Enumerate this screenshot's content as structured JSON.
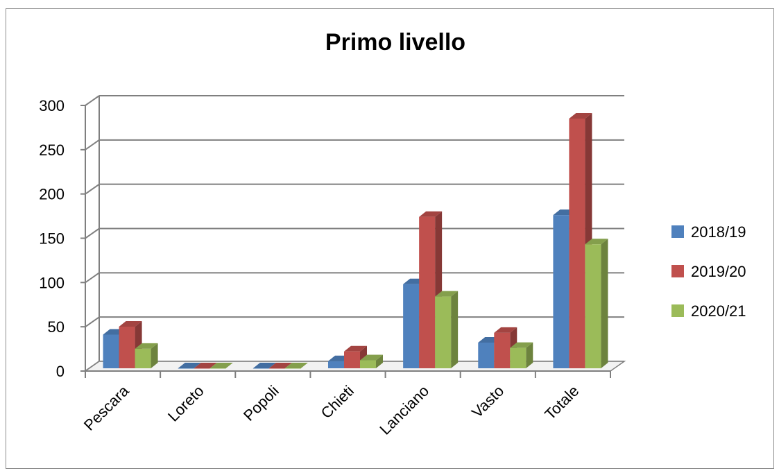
{
  "chart_data": {
    "type": "bar",
    "style": "3d-clustered",
    "title": "Primo livello",
    "categories": [
      "Pescara",
      "Loreto",
      "Popoli",
      "Chieti",
      "Lanciano",
      "Vasto",
      "Totale"
    ],
    "series": [
      {
        "name": "2018/19",
        "color": "#4f81bd",
        "values": [
          38,
          0,
          0,
          8,
          95,
          29,
          173
        ]
      },
      {
        "name": "2019/20",
        "color": "#c0504d",
        "values": [
          47,
          0,
          0,
          19,
          171,
          40,
          282
        ]
      },
      {
        "name": "2020/21",
        "color": "#9bbb59",
        "values": [
          22,
          0,
          0,
          9,
          81,
          23,
          140
        ]
      }
    ],
    "ylim": [
      0,
      300
    ],
    "yticks": [
      "0",
      "50",
      "100",
      "150",
      "200",
      "250",
      "300"
    ],
    "grid": true,
    "legend": "right"
  }
}
